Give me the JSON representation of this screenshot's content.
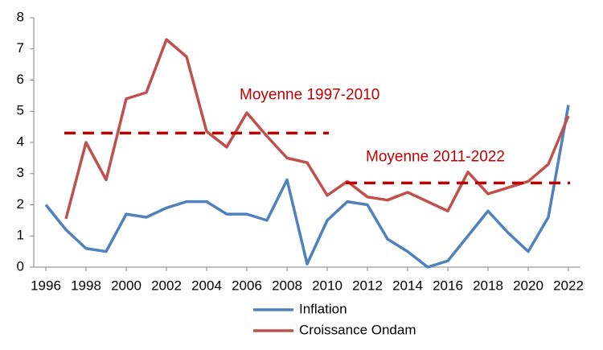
{
  "chart_data": {
    "type": "line",
    "x": [
      1996,
      1997,
      1998,
      1999,
      2000,
      2001,
      2002,
      2003,
      2004,
      2005,
      2006,
      2007,
      2008,
      2009,
      2010,
      2011,
      2012,
      2013,
      2014,
      2015,
      2016,
      2017,
      2018,
      2019,
      2020,
      2021,
      2022
    ],
    "series": [
      {
        "name": "Inflation",
        "color": "#4f81bd",
        "values": [
          2.0,
          1.2,
          0.6,
          0.5,
          1.7,
          1.6,
          1.9,
          2.1,
          2.1,
          1.7,
          1.7,
          1.5,
          2.8,
          0.1,
          1.5,
          2.1,
          2.0,
          0.9,
          0.5,
          0.0,
          0.2,
          1.0,
          1.8,
          1.1,
          0.5,
          1.6,
          5.2
        ]
      },
      {
        "name": "Croissance Ondam",
        "color": "#c0504d",
        "values": [
          null,
          1.55,
          4.0,
          2.8,
          5.4,
          5.6,
          7.3,
          6.75,
          4.35,
          3.85,
          4.95,
          4.2,
          3.5,
          3.35,
          2.3,
          2.75,
          2.25,
          2.15,
          2.4,
          2.1,
          1.8,
          3.05,
          2.35,
          2.55,
          2.75,
          3.3,
          4.85
        ]
      }
    ],
    "reference_lines": [
      {
        "label": "Moyenne 1997-2010",
        "value": 4.3,
        "start": 1997,
        "end": 2010,
        "color": "#c00000"
      },
      {
        "label": "Moyenne 2011-2022",
        "value": 2.7,
        "start": 2011,
        "end": 2022,
        "color": "#c00000"
      }
    ],
    "xlim": [
      1995.4,
      2022.6
    ],
    "xticks": [
      1996,
      1998,
      2000,
      2002,
      2004,
      2006,
      2008,
      2010,
      2012,
      2014,
      2016,
      2018,
      2020,
      2022
    ],
    "ylim": [
      0,
      8
    ],
    "yticks": [
      0,
      1,
      2,
      3,
      4,
      5,
      6,
      7,
      8
    ],
    "grid": false,
    "legend": "bottom"
  }
}
